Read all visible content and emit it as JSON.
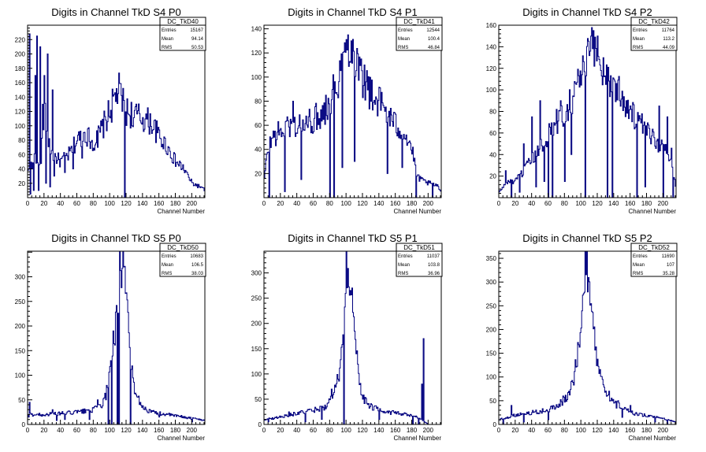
{
  "chart_data": [
    {
      "type": "bar",
      "title": "Digits in Channel TkD S4 P0",
      "xlabel": "Channel Number",
      "ylabel": "",
      "xlim": [
        0,
        216
      ],
      "ylim": [
        0,
        240
      ],
      "xticks": [
        0,
        20,
        40,
        60,
        80,
        100,
        120,
        140,
        160,
        180,
        200
      ],
      "yticks": [
        20,
        40,
        60,
        80,
        100,
        120,
        140,
        160,
        180,
        200,
        220
      ],
      "color": "#00007f",
      "stats": {
        "name": "DC_TkD40",
        "rows": [
          {
            "label": "Entries",
            "value": "15167"
          },
          {
            "label": "Mean",
            "value": "94.14"
          },
          {
            "label": "RMS",
            "value": "50.53"
          }
        ]
      },
      "profile": [
        [
          0,
          35
        ],
        [
          5,
          60
        ],
        [
          10,
          50
        ],
        [
          15,
          40
        ],
        [
          20,
          120
        ],
        [
          25,
          80
        ],
        [
          30,
          60
        ],
        [
          35,
          55
        ],
        [
          40,
          50
        ],
        [
          50,
          60
        ],
        [
          60,
          80
        ],
        [
          70,
          90
        ],
        [
          80,
          75
        ],
        [
          90,
          95
        ],
        [
          100,
          120
        ],
        [
          110,
          150
        ],
        [
          120,
          120
        ],
        [
          130,
          115
        ],
        [
          140,
          110
        ],
        [
          150,
          105
        ],
        [
          160,
          85
        ],
        [
          170,
          70
        ],
        [
          180,
          50
        ],
        [
          190,
          40
        ],
        [
          200,
          20
        ],
        [
          210,
          15
        ],
        [
          216,
          10
        ]
      ],
      "spikes": [
        [
          2,
          228
        ],
        [
          5,
          40
        ],
        [
          9,
          170
        ],
        [
          11,
          225
        ],
        [
          15,
          210
        ],
        [
          18,
          130
        ],
        [
          20,
          170
        ],
        [
          24,
          200
        ],
        [
          30,
          150
        ],
        [
          127,
          100
        ]
      ],
      "dips": [
        [
          3,
          5
        ],
        [
          7,
          10
        ],
        [
          13,
          10
        ],
        [
          22,
          20
        ],
        [
          27,
          15
        ],
        [
          32,
          30
        ],
        [
          45,
          35
        ],
        [
          55,
          40
        ],
        [
          66,
          55
        ],
        [
          85,
          70
        ],
        [
          118,
          0
        ]
      ]
    },
    {
      "type": "bar",
      "title": "Digits in Channel TkD S4 P1",
      "xlabel": "Channel Number",
      "ylabel": "",
      "xlim": [
        0,
        216
      ],
      "ylim": [
        0,
        143
      ],
      "xticks": [
        0,
        20,
        40,
        60,
        80,
        100,
        120,
        140,
        160,
        180,
        200
      ],
      "yticks": [
        20,
        40,
        60,
        80,
        100,
        120,
        140
      ],
      "color": "#00007f",
      "stats": {
        "name": "DC_TkD41",
        "rows": [
          {
            "label": "Entries",
            "value": "12544"
          },
          {
            "label": "Mean",
            "value": "100.4"
          },
          {
            "label": "RMS",
            "value": "46.84"
          }
        ]
      },
      "profile": [
        [
          0,
          15
        ],
        [
          4,
          40
        ],
        [
          10,
          50
        ],
        [
          20,
          55
        ],
        [
          30,
          60
        ],
        [
          40,
          60
        ],
        [
          50,
          60
        ],
        [
          60,
          65
        ],
        [
          70,
          70
        ],
        [
          80,
          80
        ],
        [
          90,
          100
        ],
        [
          100,
          125
        ],
        [
          105,
          130
        ],
        [
          110,
          120
        ],
        [
          120,
          100
        ],
        [
          130,
          85
        ],
        [
          140,
          80
        ],
        [
          150,
          70
        ],
        [
          160,
          60
        ],
        [
          170,
          55
        ],
        [
          180,
          40
        ],
        [
          185,
          20
        ],
        [
          190,
          15
        ],
        [
          200,
          12
        ],
        [
          210,
          10
        ],
        [
          216,
          5
        ]
      ],
      "spikes": [
        [
          35,
          80
        ],
        [
          75,
          85
        ],
        [
          102,
          135
        ],
        [
          106,
          130
        ],
        [
          118,
          115
        ],
        [
          122,
          110
        ]
      ],
      "dips": [
        [
          6,
          0
        ],
        [
          25,
          5
        ],
        [
          45,
          15
        ],
        [
          80,
          0
        ],
        [
          85,
          0
        ],
        [
          95,
          25
        ],
        [
          110,
          30
        ],
        [
          150,
          20
        ],
        [
          168,
          25
        ],
        [
          185,
          0
        ],
        [
          205,
          0
        ]
      ]
    },
    {
      "type": "bar",
      "title": "Digits in Channel TkD S4 P2",
      "xlabel": "Channel Number",
      "ylabel": "",
      "xlim": [
        0,
        216
      ],
      "ylim": [
        0,
        160
      ],
      "xticks": [
        0,
        20,
        40,
        60,
        80,
        100,
        120,
        140,
        160,
        180,
        200
      ],
      "yticks": [
        20,
        40,
        60,
        80,
        100,
        120,
        140,
        160
      ],
      "color": "#00007f",
      "stats": {
        "name": "DC_TkD42",
        "rows": [
          {
            "label": "Entries",
            "value": "11764"
          },
          {
            "label": "Mean",
            "value": "113.2"
          },
          {
            "label": "RMS",
            "value": "44.09"
          }
        ]
      },
      "profile": [
        [
          0,
          5
        ],
        [
          10,
          15
        ],
        [
          20,
          15
        ],
        [
          30,
          25
        ],
        [
          40,
          35
        ],
        [
          50,
          45
        ],
        [
          60,
          60
        ],
        [
          70,
          70
        ],
        [
          80,
          80
        ],
        [
          90,
          95
        ],
        [
          100,
          115
        ],
        [
          110,
          130
        ],
        [
          115,
          145
        ],
        [
          120,
          130
        ],
        [
          130,
          115
        ],
        [
          140,
          105
        ],
        [
          150,
          95
        ],
        [
          160,
          80
        ],
        [
          170,
          70
        ],
        [
          180,
          60
        ],
        [
          190,
          55
        ],
        [
          200,
          45
        ],
        [
          210,
          40
        ],
        [
          216,
          5
        ]
      ],
      "spikes": [
        [
          8,
          25
        ],
        [
          30,
          50
        ],
        [
          40,
          75
        ],
        [
          50,
          90
        ],
        [
          75,
          90
        ],
        [
          115,
          155
        ],
        [
          120,
          150
        ],
        [
          195,
          85
        ],
        [
          205,
          75
        ]
      ],
      "dips": [
        [
          15,
          0
        ],
        [
          25,
          5
        ],
        [
          45,
          10
        ],
        [
          55,
          15
        ],
        [
          60,
          0
        ],
        [
          65,
          0
        ],
        [
          80,
          15
        ],
        [
          88,
          40
        ],
        [
          105,
          0
        ],
        [
          132,
          0
        ],
        [
          138,
          0
        ],
        [
          168,
          0
        ],
        [
          178,
          10
        ],
        [
          200,
          0
        ],
        [
          212,
          0
        ]
      ]
    },
    {
      "type": "bar",
      "title": "Digits in Channel TkD S5 P0",
      "xlabel": "Channel Number",
      "ylabel": "",
      "xlim": [
        0,
        216
      ],
      "ylim": [
        0,
        352
      ],
      "xticks": [
        0,
        20,
        40,
        60,
        80,
        100,
        120,
        140,
        160,
        180,
        200
      ],
      "yticks": [
        0,
        50,
        100,
        150,
        200,
        250,
        300
      ],
      "color": "#00007f",
      "stats": {
        "name": "DC_TkD50",
        "rows": [
          {
            "label": "Entries",
            "value": "10683"
          },
          {
            "label": "Mean",
            "value": "106.5"
          },
          {
            "label": "RMS",
            "value": "38.03"
          }
        ]
      },
      "profile": [
        [
          0,
          20
        ],
        [
          10,
          20
        ],
        [
          20,
          20
        ],
        [
          40,
          22
        ],
        [
          60,
          25
        ],
        [
          80,
          30
        ],
        [
          90,
          40
        ],
        [
          95,
          60
        ],
        [
          100,
          110
        ],
        [
          105,
          150
        ],
        [
          108,
          220
        ],
        [
          112,
          330
        ],
        [
          116,
          300
        ],
        [
          120,
          250
        ],
        [
          124,
          150
        ],
        [
          128,
          90
        ],
        [
          132,
          60
        ],
        [
          140,
          35
        ],
        [
          150,
          25
        ],
        [
          170,
          20
        ],
        [
          190,
          15
        ],
        [
          210,
          10
        ],
        [
          216,
          8
        ]
      ],
      "spikes": [
        [
          2,
          45
        ],
        [
          30,
          30
        ],
        [
          85,
          50
        ],
        [
          95,
          50
        ],
        [
          104,
          190
        ],
        [
          132,
          60
        ]
      ],
      "dips": [
        [
          1,
          15
        ],
        [
          35,
          8
        ],
        [
          45,
          10
        ],
        [
          75,
          10
        ],
        [
          98,
          0
        ],
        [
          102,
          0
        ],
        [
          109,
          0
        ],
        [
          111,
          0
        ],
        [
          125,
          0
        ],
        [
          160,
          15
        ],
        [
          200,
          5
        ]
      ]
    },
    {
      "type": "bar",
      "title": "Digits in Channel TkD S5 P1",
      "xlabel": "Channel Number",
      "ylabel": "",
      "xlim": [
        0,
        216
      ],
      "ylim": [
        0,
        343
      ],
      "xticks": [
        0,
        20,
        40,
        60,
        80,
        100,
        120,
        140,
        160,
        180,
        200
      ],
      "yticks": [
        0,
        50,
        100,
        150,
        200,
        250,
        300
      ],
      "color": "#00007f",
      "stats": {
        "name": "DC_TkD51",
        "rows": [
          {
            "label": "Entries",
            "value": "11037"
          },
          {
            "label": "Mean",
            "value": "103.8"
          },
          {
            "label": "RMS",
            "value": "36.96"
          }
        ]
      },
      "profile": [
        [
          0,
          10
        ],
        [
          10,
          12
        ],
        [
          20,
          15
        ],
        [
          40,
          22
        ],
        [
          60,
          28
        ],
        [
          75,
          35
        ],
        [
          85,
          60
        ],
        [
          90,
          90
        ],
        [
          95,
          150
        ],
        [
          98,
          240
        ],
        [
          100,
          315
        ],
        [
          103,
          300
        ],
        [
          106,
          250
        ],
        [
          110,
          180
        ],
        [
          114,
          110
        ],
        [
          118,
          70
        ],
        [
          122,
          50
        ],
        [
          130,
          35
        ],
        [
          150,
          25
        ],
        [
          170,
          20
        ],
        [
          185,
          15
        ],
        [
          190,
          10
        ],
        [
          195,
          5
        ],
        [
          200,
          0
        ],
        [
          216,
          0
        ]
      ],
      "spikes": [
        [
          30,
          25
        ],
        [
          82,
          70
        ],
        [
          120,
          50
        ],
        [
          192,
          80
        ],
        [
          194,
          170
        ]
      ],
      "dips": [
        [
          5,
          5
        ],
        [
          50,
          5
        ],
        [
          70,
          10
        ],
        [
          97,
          0
        ],
        [
          140,
          10
        ],
        [
          181,
          0
        ],
        [
          188,
          0
        ]
      ]
    },
    {
      "type": "bar",
      "title": "Digits in Channel TkD S5 P2",
      "xlabel": "Channel Number",
      "ylabel": "",
      "xlim": [
        0,
        216
      ],
      "ylim": [
        0,
        365
      ],
      "xticks": [
        0,
        20,
        40,
        60,
        80,
        100,
        120,
        140,
        160,
        180,
        200
      ],
      "yticks": [
        0,
        50,
        100,
        150,
        200,
        250,
        300,
        350
      ],
      "color": "#00007f",
      "stats": {
        "name": "DC_TkD52",
        "rows": [
          {
            "label": "Entries",
            "value": "11690"
          },
          {
            "label": "Mean",
            "value": "107"
          },
          {
            "label": "RMS",
            "value": "35.28"
          }
        ]
      },
      "profile": [
        [
          0,
          10
        ],
        [
          10,
          15
        ],
        [
          20,
          20
        ],
        [
          40,
          25
        ],
        [
          60,
          30
        ],
        [
          80,
          50
        ],
        [
          90,
          90
        ],
        [
          95,
          140
        ],
        [
          100,
          220
        ],
        [
          104,
          300
        ],
        [
          106,
          340
        ],
        [
          108,
          310
        ],
        [
          112,
          250
        ],
        [
          116,
          180
        ],
        [
          120,
          130
        ],
        [
          125,
          90
        ],
        [
          130,
          60
        ],
        [
          140,
          45
        ],
        [
          150,
          35
        ],
        [
          160,
          25
        ],
        [
          180,
          18
        ],
        [
          200,
          12
        ],
        [
          216,
          5
        ]
      ],
      "spikes": [
        [
          15,
          40
        ],
        [
          78,
          60
        ],
        [
          134,
          70
        ],
        [
          145,
          50
        ],
        [
          160,
          40
        ]
      ],
      "dips": [
        [
          5,
          0
        ],
        [
          30,
          5
        ],
        [
          60,
          10
        ],
        [
          150,
          15
        ],
        [
          190,
          5
        ],
        [
          205,
          0
        ]
      ]
    }
  ]
}
